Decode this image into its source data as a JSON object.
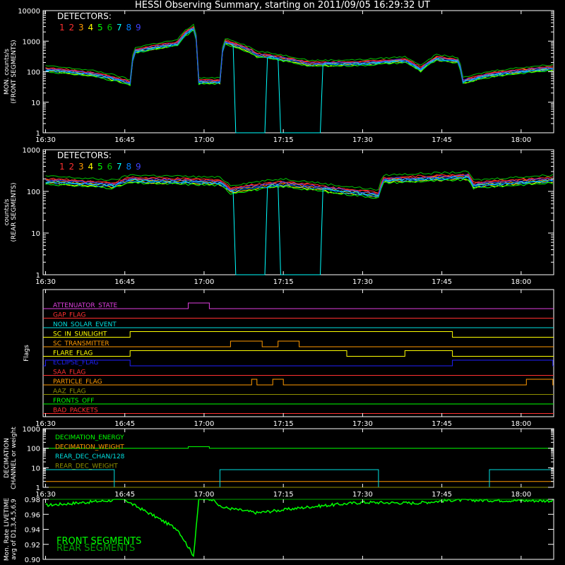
{
  "title": "HESSI Observing Summary, starting on 2011/09/05 16:29:32 UT",
  "time_ticks": [
    "16:30",
    "16:45",
    "17:00",
    "17:15",
    "17:30",
    "17:45",
    "18:00"
  ],
  "detectors": {
    "heading": "DETECTORS:",
    "numbers": [
      "1",
      "2",
      "3",
      "4",
      "5",
      "6",
      "7",
      "8",
      "9"
    ],
    "colors": [
      "#ff3030",
      "#ff3030",
      "#ff9900",
      "#ffff00",
      "#00ff00",
      "#00c000",
      "#00ffff",
      "#0080ff",
      "#4040ff"
    ]
  },
  "chart_data": [
    {
      "type": "line",
      "name": "front-monitor-rates",
      "ylabel": "MON. counts/s\n(FRONT SEGMENTS)",
      "yscale": "log",
      "ylim": [
        1,
        10000
      ],
      "yticks": [
        "1",
        "10",
        "100",
        "1000",
        "10000"
      ],
      "xlim": [
        "16:30",
        "18:06"
      ],
      "series_profile_min": [
        [
          "16:30",
          100
        ],
        [
          "16:39",
          70
        ],
        [
          "16:46",
          35
        ],
        [
          "16:47",
          400
        ],
        [
          "16:55",
          700
        ],
        [
          "16:58",
          2200
        ],
        [
          "16:59",
          40
        ],
        [
          "17:03",
          40
        ],
        [
          "17:04",
          800
        ],
        [
          "17:10",
          300
        ],
        [
          "17:20",
          150
        ],
        [
          "17:30",
          160
        ],
        [
          "17:38",
          200
        ],
        [
          "17:41",
          100
        ],
        [
          "17:44",
          230
        ],
        [
          "17:48",
          190
        ],
        [
          "17:49",
          40
        ],
        [
          "17:55",
          70
        ],
        [
          "18:06",
          110
        ]
      ],
      "dropouts": [
        [
          "17:05:30",
          "17:12:00"
        ],
        [
          "17:14:00",
          "17:22:30"
        ]
      ]
    },
    {
      "type": "line",
      "name": "rear-rates",
      "ylabel": "counts/s\n(REAR SEGMENTS)",
      "yscale": "log",
      "ylim": [
        1,
        1000
      ],
      "yticks": [
        "1",
        "10",
        "100",
        "1000"
      ],
      "xlim": [
        "16:30",
        "18:06"
      ],
      "series_profile_min": [
        [
          "16:30",
          150
        ],
        [
          "16:43",
          120
        ],
        [
          "16:46",
          160
        ],
        [
          "17:03",
          140
        ],
        [
          "17:05",
          90
        ],
        [
          "17:15",
          130
        ],
        [
          "17:25",
          90
        ],
        [
          "17:33",
          70
        ],
        [
          "17:34",
          160
        ],
        [
          "17:50",
          190
        ],
        [
          "17:51",
          120
        ],
        [
          "18:06",
          160
        ]
      ],
      "dropouts": [
        [
          "17:05:30",
          "17:12:00"
        ],
        [
          "17:14:00",
          "17:22:30"
        ]
      ]
    },
    {
      "type": "table",
      "name": "flags",
      "ylabel": "Flags",
      "rows": [
        {
          "label": "ATTENUATOR_STATE",
          "color": "#e040e0",
          "on": [
            [
              "16:57",
              "17:01"
            ]
          ]
        },
        {
          "label": "GAP_FLAG",
          "color": "#ff3030",
          "on": []
        },
        {
          "label": "NON_SOLAR_EVENT",
          "color": "#00e0e0",
          "on": []
        },
        {
          "label": "SC_IN_SUNLIGHT",
          "color": "#ffff00",
          "on": [
            [
              "16:46",
              "17:47"
            ]
          ]
        },
        {
          "label": "SC_TRANSMITTER",
          "color": "#ff9900",
          "on": [
            [
              "17:05",
              "17:11"
            ],
            [
              "17:14",
              "17:18"
            ]
          ]
        },
        {
          "label": "FLARE_FLAG",
          "color": "#ffff00",
          "on": [
            [
              "16:46",
              "17:27"
            ],
            [
              "17:38",
              "17:47"
            ]
          ]
        },
        {
          "label": "ECLIPSE_FLAG",
          "color": "#2020ff",
          "on": [
            [
              "16:30",
              "16:46"
            ],
            [
              "17:47",
              "18:06"
            ]
          ]
        },
        {
          "label": "SAA_FLAG",
          "color": "#ff3030",
          "on": []
        },
        {
          "label": "PARTICLE_FLAG",
          "color": "#ff9900",
          "on": [
            [
              "17:09",
              "17:10"
            ],
            [
              "17:13",
              "17:15"
            ],
            [
              "18:01",
              "18:06"
            ]
          ]
        },
        {
          "label": "AAZ_FLAG",
          "color": "#909000",
          "on": []
        },
        {
          "label": "FRONTS_OFF",
          "color": "#00ff00",
          "on": []
        },
        {
          "label": "BAD_PACKETS",
          "color": "#ff3030",
          "on": []
        }
      ]
    },
    {
      "type": "line",
      "name": "decimation",
      "ylabel": "DECIMATION\nCHANNEL or weight",
      "yscale": "log",
      "ylim": [
        1,
        1000
      ],
      "yticks": [
        "1",
        "10",
        "100",
        "1000"
      ],
      "series": [
        {
          "name": "DECIMATION_ENERGY",
          "color": "#00ff00",
          "values": [
            [
              "16:30",
              100
            ],
            [
              "16:57",
              100
            ],
            [
              "16:57",
              120
            ],
            [
              "17:01",
              120
            ],
            [
              "17:01",
              100
            ],
            [
              "18:06",
              100
            ]
          ]
        },
        {
          "name": "DECIMATION_WEIGHT",
          "color": "#ff9900",
          "values": [
            [
              "16:30",
              2
            ],
            [
              "18:06",
              2
            ]
          ]
        },
        {
          "name": "REAR_DEC_CHAN/128",
          "color": "#00e0e0",
          "values": [
            [
              "16:30",
              8
            ],
            [
              "16:43",
              8
            ],
            [
              "16:43",
              1
            ],
            [
              "17:03",
              1
            ],
            [
              "17:03",
              8
            ],
            [
              "17:33",
              8
            ],
            [
              "17:33",
              1
            ],
            [
              "17:54",
              1
            ],
            [
              "17:54",
              8
            ],
            [
              "18:06",
              8
            ]
          ]
        },
        {
          "name": "REAR_DEC_WEIGHT",
          "color": "#909000",
          "values": [
            [
              "16:30",
              1
            ],
            [
              "18:06",
              1
            ]
          ]
        }
      ]
    },
    {
      "type": "line",
      "name": "livetime",
      "ylabel": "Mon. Rate LIVETIME\navg of D1,3,4,5,6,9",
      "ylim": [
        0.9,
        0.98
      ],
      "yticks": [
        "0.90",
        "0.92",
        "0.94",
        "0.96",
        "0.98"
      ],
      "series": [
        {
          "name": "FRONT SEGMENTS",
          "color": "#00ff00",
          "values": [
            [
              "16:30",
              0.972
            ],
            [
              "16:45",
              0.98
            ],
            [
              "16:46",
              0.975
            ],
            [
              "16:50",
              0.96
            ],
            [
              "16:55",
              0.94
            ],
            [
              "16:58",
              0.905
            ],
            [
              "16:59",
              0.98
            ],
            [
              "17:02",
              0.98
            ],
            [
              "17:03",
              0.97
            ],
            [
              "17:10",
              0.962
            ],
            [
              "17:20",
              0.97
            ],
            [
              "17:30",
              0.976
            ],
            [
              "17:40",
              0.975
            ],
            [
              "17:47",
              0.979
            ],
            [
              "18:06",
              0.978
            ]
          ]
        },
        {
          "name": "REAR SEGMENTS",
          "color": "#00a000",
          "values": [
            [
              "16:30",
              0.98
            ],
            [
              "18:06",
              0.98
            ]
          ]
        }
      ]
    }
  ]
}
